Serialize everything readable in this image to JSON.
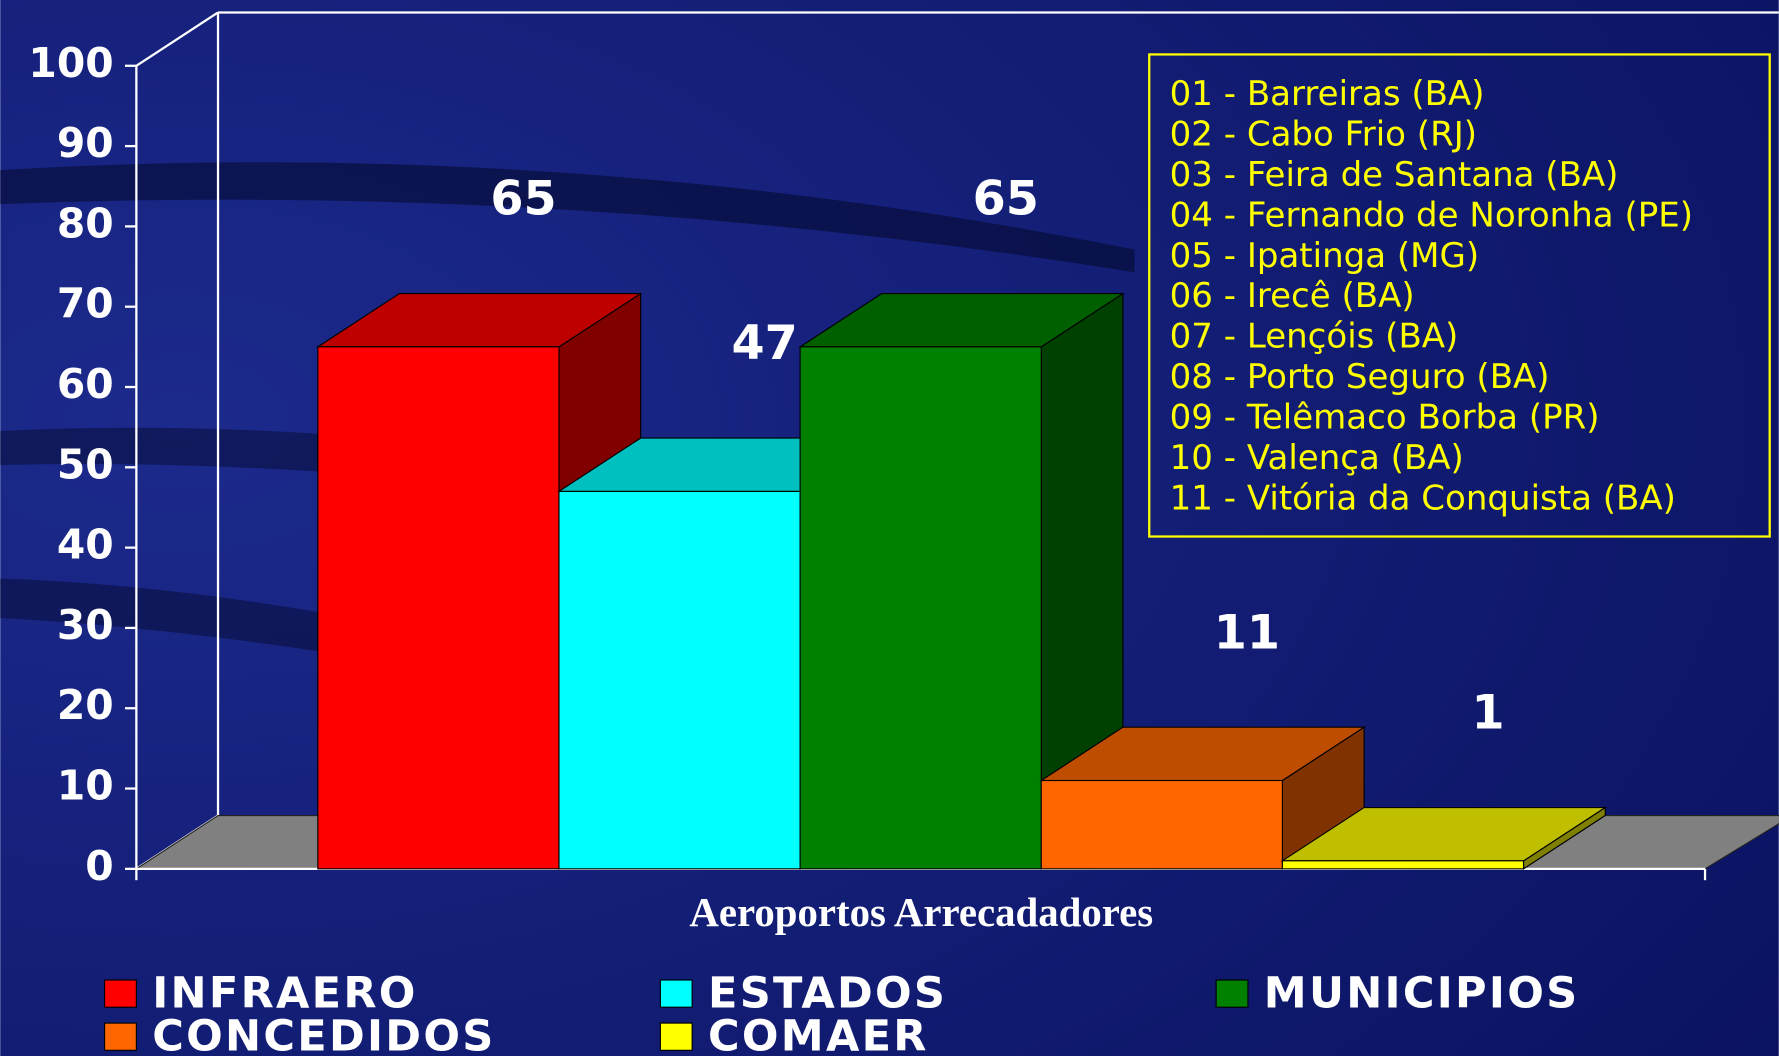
{
  "chart_data": {
    "type": "bar3d",
    "xlabel": "Aeroportos Arrecadadores",
    "categories": [
      null
    ],
    "series": [
      {
        "name": "INFRAERO",
        "color": "#ff0000",
        "values": [
          65
        ]
      },
      {
        "name": "ESTADOS",
        "color": "#00ffff",
        "values": [
          47
        ]
      },
      {
        "name": "MUNICIPIOS",
        "color": "#008000",
        "values": [
          65
        ]
      },
      {
        "name": "CONCEDIDOS",
        "color": "#ff6600",
        "values": [
          11
        ]
      },
      {
        "name": "COMAER",
        "color": "#ffff00",
        "values": [
          1
        ]
      }
    ],
    "ylim": [
      0,
      100
    ],
    "yticks": [
      0,
      10,
      20,
      30,
      40,
      50,
      60,
      70,
      80,
      90,
      100
    ],
    "grid": false,
    "legend": "bottom",
    "annotations": [
      "01 - Barreiras (BA)",
      "02 - Cabo Frio (RJ)",
      "03 - Feira de Santana (BA)",
      "04 - Fernando de Noronha (PE)",
      "05 - Ipatinga (MG)",
      "06 - Irecê (BA)",
      "07 - Lençóis (BA)",
      "08 - Porto Seguro (BA)",
      "09 - Telêmaco Borba (PR)",
      "10 - Valença (BA)",
      "11 - Vitória da Conquista (BA)"
    ]
  }
}
